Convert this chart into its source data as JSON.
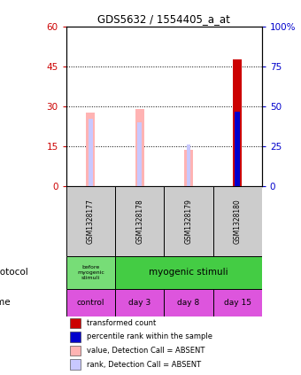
{
  "title": "GDS5632 / 1554405_a_at",
  "samples": [
    "GSM1328177",
    "GSM1328178",
    "GSM1328179",
    "GSM1328180"
  ],
  "bar_absent_value": [
    27.5,
    29.0,
    13.5,
    0.0
  ],
  "bar_absent_rank_pct": [
    42.0,
    40.0,
    0.0,
    0.0
  ],
  "bar_present_value": [
    0.0,
    0.0,
    0.0,
    47.5
  ],
  "bar_present_rank_pct": [
    0.0,
    0.0,
    0.0,
    46.5
  ],
  "absent_rank_dot_pct": [
    0.0,
    0.0,
    25.0,
    0.0
  ],
  "ylim_left": [
    0,
    60
  ],
  "ylim_right": [
    0,
    100
  ],
  "yticks_left": [
    0,
    15,
    30,
    45,
    60
  ],
  "ytick_labels_left": [
    "0",
    "15",
    "30",
    "45",
    "60"
  ],
  "yticks_right": [
    0,
    25,
    50,
    75,
    100
  ],
  "ytick_labels_right": [
    "0",
    "25",
    "50",
    "75",
    "100%"
  ],
  "color_absent_value": "#ffb3b3",
  "color_absent_rank": "#c8c8ff",
  "color_present_value": "#cc0000",
  "color_present_rank": "#0000cc",
  "left_axis_color": "#cc0000",
  "right_axis_color": "#0000cc",
  "time_labels": [
    "control",
    "day 3",
    "day 8",
    "day 15"
  ],
  "time_color": "#dd55dd",
  "protocol_before_color": "#77dd77",
  "protocol_after_color": "#44cc44",
  "sample_label_color": "#cccccc",
  "legend_items": [
    {
      "color": "#cc0000",
      "label": "transformed count"
    },
    {
      "color": "#0000cc",
      "label": "percentile rank within the sample"
    },
    {
      "color": "#ffb3b3",
      "label": "value, Detection Call = ABSENT"
    },
    {
      "color": "#c8c8ff",
      "label": "rank, Detection Call = ABSENT"
    }
  ]
}
